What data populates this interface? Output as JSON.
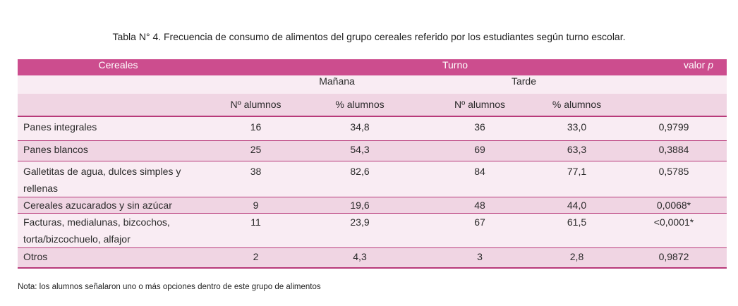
{
  "caption": "Tabla N° 4. Frecuencia de consumo de alimentos del grupo cereales referido por los estudiantes según turno escolar.",
  "header": {
    "cereales": "Cereales",
    "turno": "Turno",
    "valor_p_prefix": "valor ",
    "valor_p_italic": "p",
    "manana": "Mañana",
    "tarde": "Tarde",
    "n_alumnos_manana": "Nº alumnos",
    "pct_alumnos_manana": "% alumnos",
    "n_alumnos_tarde": "Nº alumnos",
    "pct_alumnos_tarde": "% alumnos"
  },
  "rows": [
    {
      "label_line1": "Panes integrales",
      "label_line2": "",
      "n_m": "16",
      "pct_m": "34,8",
      "n_t": "36",
      "pct_t": "33,0",
      "p": "0,9799"
    },
    {
      "label_line1": "Panes blancos",
      "label_line2": "",
      "n_m": "25",
      "pct_m": "54,3",
      "n_t": "69",
      "pct_t": "63,3",
      "p": "0,3884"
    },
    {
      "label_line1": "Galletitas de agua, dulces simples y",
      "label_line2": "rellenas",
      "n_m": "38",
      "pct_m": "82,6",
      "n_t": "84",
      "pct_t": "77,1",
      "p": "0,5785"
    },
    {
      "label_line1": "Cereales azucarados y sin azúcar",
      "label_line2": "",
      "n_m": "9",
      "pct_m": "19,6",
      "n_t": "48",
      "pct_t": "44,0",
      "p": "0,0068*"
    },
    {
      "label_line1": "Facturas, medialunas, bizcochos,",
      "label_line2": "torta/bizcochuelo, alfajor",
      "n_m": "11",
      "pct_m": "23,9",
      "n_t": "67",
      "pct_t": "61,5",
      "p": "<0,0001*"
    },
    {
      "label_line1": "Otros",
      "label_line2": "",
      "n_m": "2",
      "pct_m": "4,3",
      "n_t": "3",
      "pct_t": "2,8",
      "p": "0,9872"
    }
  ],
  "note": "Nota: los alumnos señalaron uno o más opciones dentro de este grupo de alimentos",
  "colors": {
    "header_magenta": "#cc4d8e",
    "row_light_pink": "#f9ecf3",
    "row_mid_pink": "#f0d5e3",
    "rule_magenta": "#b83a7a"
  }
}
